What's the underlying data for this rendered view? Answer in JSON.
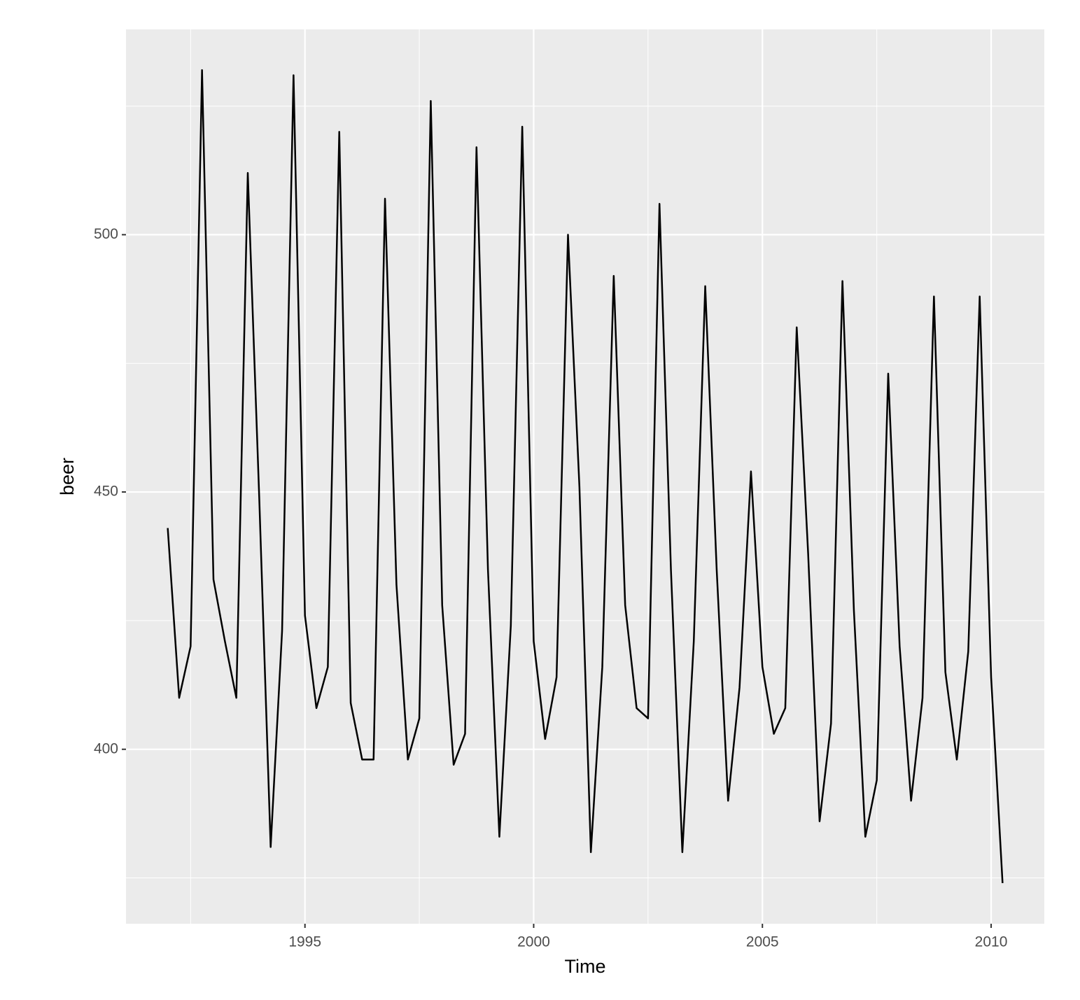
{
  "chart_data": {
    "type": "line",
    "x_label": "Time",
    "y_label": "beer",
    "x": [
      1992,
      1992.25,
      1992.5,
      1992.75,
      1993,
      1993.25,
      1993.5,
      1993.75,
      1994,
      1994.25,
      1994.5,
      1994.75,
      1995,
      1995.25,
      1995.5,
      1995.75,
      1996,
      1996.25,
      1996.5,
      1996.75,
      1997,
      1997.25,
      1997.5,
      1997.75,
      1998,
      1998.25,
      1998.5,
      1998.75,
      1999,
      1999.25,
      1999.5,
      1999.75,
      2000,
      2000.25,
      2000.5,
      2000.75,
      2001,
      2001.25,
      2001.5,
      2001.75,
      2002,
      2002.25,
      2002.5,
      2002.75,
      2003,
      2003.25,
      2003.5,
      2003.75,
      2004,
      2004.25,
      2004.5,
      2004.75,
      2005,
      2005.25,
      2005.5,
      2005.75,
      2006,
      2006.25,
      2006.5,
      2006.75,
      2007,
      2007.25,
      2007.5,
      2007.75,
      2008,
      2008.25,
      2008.5,
      2008.75,
      2009,
      2009.25,
      2009.5,
      2009.75,
      2010,
      2010.25
    ],
    "series": [
      {
        "name": "beer",
        "color": "#000000",
        "values": [
          443,
          410,
          420,
          532,
          433,
          421,
          410,
          512,
          449,
          381,
          423,
          531,
          426,
          408,
          416,
          520,
          409,
          398,
          398,
          507,
          432,
          398,
          406,
          526,
          428,
          397,
          403,
          517,
          435,
          383,
          424,
          521,
          421,
          402,
          414,
          500,
          451,
          380,
          416,
          492,
          428,
          408,
          406,
          506,
          435,
          380,
          421,
          490,
          435,
          390,
          412,
          454,
          416,
          403,
          408,
          482,
          438,
          386,
          405,
          491,
          427,
          383,
          394,
          473,
          420,
          390,
          410,
          488,
          415,
          398,
          419,
          488,
          414,
          374
        ]
      }
    ],
    "xlim": [
      1991.0875,
      2011.1625
    ],
    "xticks": [
      1995,
      2000,
      2005,
      2010
    ],
    "xminor": [
      1992.5,
      1997.5,
      2002.5,
      2007.5
    ],
    "ylim": [
      366.1,
      539.9
    ],
    "yticks": [
      400,
      450,
      500
    ],
    "yminor": [
      375,
      425,
      475,
      525
    ],
    "grid": true,
    "panel_color": "#ebebeb",
    "grid_color": "#ffffff"
  }
}
